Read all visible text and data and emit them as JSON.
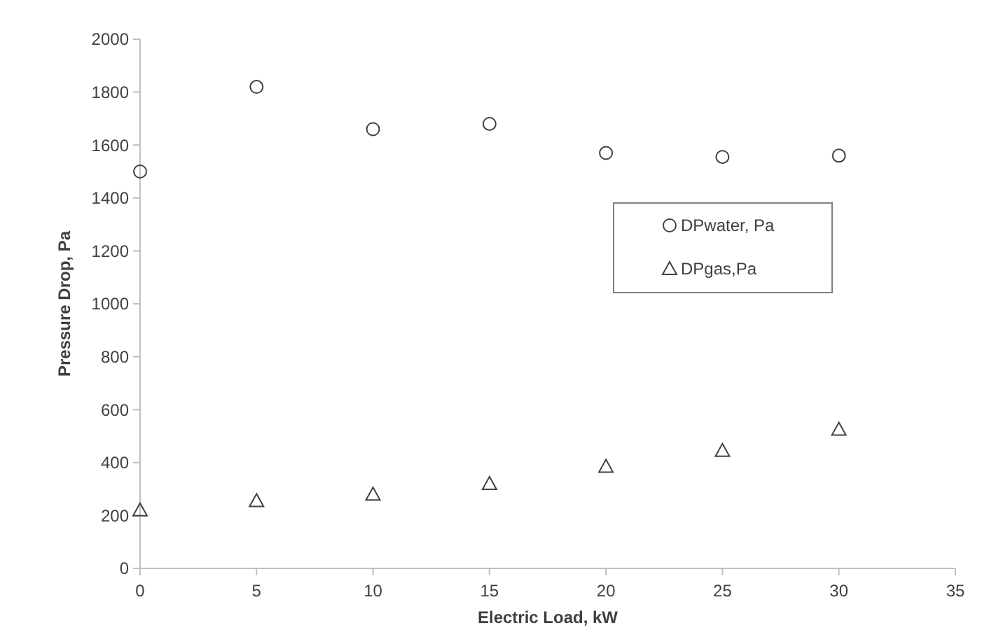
{
  "chart_data": {
    "type": "scatter",
    "xlabel": "Electric Load, kW",
    "ylabel": "Pressure Drop, Pa",
    "x": [
      0,
      5,
      10,
      15,
      20,
      25,
      30
    ],
    "series": [
      {
        "name": "DPwater, Pa",
        "color": "#404040",
        "marker": "circle",
        "values": [
          1500,
          1820,
          1660,
          1680,
          1570,
          1555,
          1560
        ]
      },
      {
        "name": "DPgas,Pa",
        "color": "#404040",
        "marker": "triangle",
        "values": [
          220,
          255,
          280,
          320,
          385,
          445,
          525
        ]
      }
    ],
    "xlim": [
      0,
      35
    ],
    "xticks": [
      0,
      5,
      10,
      15,
      20,
      25,
      30,
      35
    ],
    "ylim": [
      0,
      2000
    ],
    "yticks": [
      0,
      200,
      400,
      600,
      800,
      1000,
      1200,
      1400,
      1600,
      1800,
      2000
    ],
    "grid": false,
    "legend": "right"
  }
}
